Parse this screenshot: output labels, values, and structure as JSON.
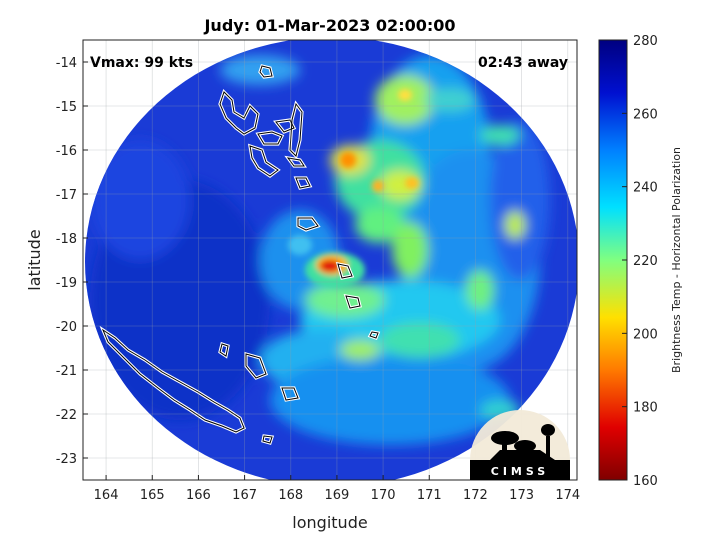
{
  "title": "Judy: 01-Mar-2023 02:00:00",
  "vmax_label": "Vmax: 99 kts",
  "time_label": "02:43 away",
  "xlabel": "longitude",
  "ylabel": "latitude",
  "x_ticks": [
    "164",
    "165",
    "166",
    "167",
    "168",
    "169",
    "170",
    "171",
    "172",
    "173",
    "174"
  ],
  "y_ticks": [
    "-14",
    "-15",
    "-16",
    "-17",
    "-18",
    "-19",
    "-20",
    "-21",
    "-22",
    "-23"
  ],
  "colorbar": {
    "label": "Brightness Temp - Horizontal Polarization",
    "ticks": [
      "280",
      "260",
      "240",
      "220",
      "200",
      "180",
      "160"
    ],
    "range": [
      160,
      280
    ]
  },
  "logo_text": "CIMSS",
  "colors": {
    "background_cold": "#1a3bd6",
    "eye_warm": "#c80000"
  }
}
